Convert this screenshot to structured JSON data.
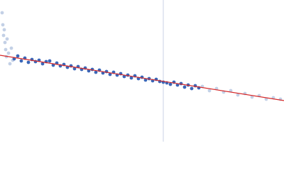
{
  "chart_data": {
    "type": "scatter",
    "xlim": [
      0,
      400
    ],
    "ylim": [
      0,
      200
    ],
    "series": [
      {
        "color": "#c3d0e6",
        "x": [
          3,
          4,
          5,
          6,
          7,
          8,
          9,
          10,
          12,
          14,
          16,
          18
        ],
        "values": [
          182,
          165,
          150,
          158,
          140,
          130,
          120,
          145,
          125,
          110,
          132,
          115
        ]
      },
      {
        "color": "#3a66b8",
        "x": [
          20,
          25,
          30,
          35,
          40,
          45,
          50,
          55,
          60,
          65,
          70,
          75,
          80,
          85,
          90,
          95,
          100,
          105,
          110,
          115,
          120,
          125,
          130,
          135,
          140,
          145,
          150,
          155,
          160,
          165,
          170,
          175,
          180,
          185,
          190,
          195,
          200,
          205,
          210,
          215,
          220,
          225,
          230,
          235,
          240,
          245,
          250,
          255,
          260,
          265,
          270,
          275,
          280
        ],
        "values": [
          117,
          121,
          114,
          118,
          112,
          116,
          113,
          115,
          110,
          113,
          114,
          108,
          111,
          107,
          109,
          105,
          107,
          103,
          106,
          102,
          104,
          100,
          102,
          98,
          101,
          97,
          99,
          95,
          98,
          94,
          96,
          92,
          94,
          90,
          93,
          89,
          91,
          87,
          89,
          86,
          88,
          85,
          84,
          83,
          81,
          84,
          80,
          82,
          77,
          80,
          75,
          79,
          76
        ]
      },
      {
        "color": "#c3d0e6",
        "x": [
          285,
          295,
          305,
          315,
          325,
          335,
          345,
          355,
          365,
          375,
          385,
          395
        ],
        "values": [
          78,
          72,
          75,
          70,
          72,
          66,
          68,
          63,
          65,
          60,
          62,
          60
        ]
      }
    ],
    "fit": {
      "color": "#d62728",
      "x": [
        0,
        400
      ],
      "values": [
        122,
        58
      ]
    },
    "vline": {
      "color": "#c8d2e4",
      "x": 230
    }
  }
}
